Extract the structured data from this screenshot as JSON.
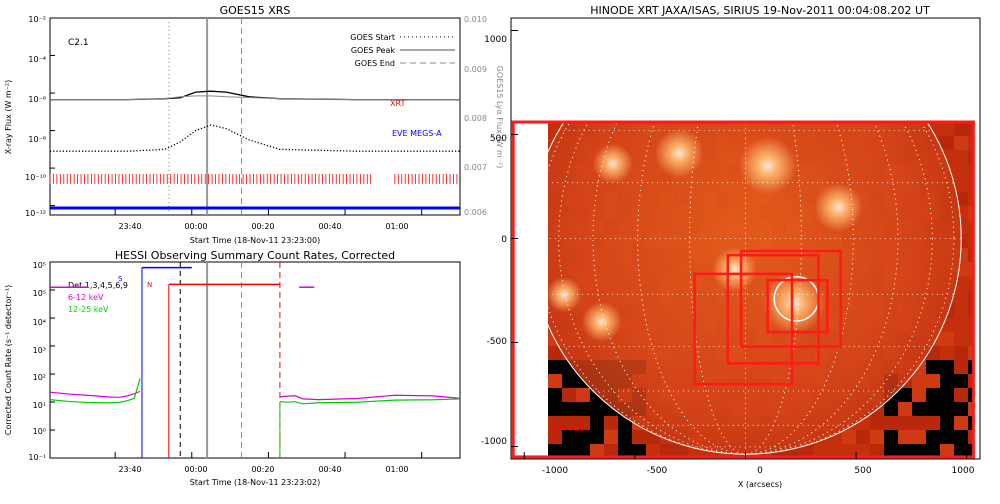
{
  "chart_data": [
    {
      "type": "line",
      "title": "GOES15 XRS",
      "xlabel": "Start Time (18-Nov-11 23:23:00)",
      "ylabel": "X-ray Flux (W m⁻²)",
      "y2label": "GOES15 Lyα Flux (W m⁻²)",
      "x_ticks": [
        "23:40",
        "00:00",
        "00:20",
        "00:40",
        "01:00"
      ],
      "y_ticks": [
        "10⁻²",
        "10⁻⁴",
        "10⁻⁶",
        "10⁻⁸",
        "10⁻¹⁰",
        "10⁻¹²"
      ],
      "y2_ticks": [
        "0.010",
        "0.009",
        "0.008",
        "0.007",
        "0.006"
      ],
      "flare_class": "C2.1",
      "legend": [
        {
          "label": "GOES Start",
          "style": "dotted"
        },
        {
          "label": "GOES Peak",
          "style": "solid"
        },
        {
          "label": "GOES End",
          "style": "dashed"
        }
      ],
      "annotations": {
        "xrt": "XRT",
        "eve": "EVE MEGS-A"
      },
      "x_range_minutes": [
        0,
        107
      ],
      "event_times_minutes": {
        "start": 31,
        "peak": 41,
        "end": 50
      },
      "series": [
        {
          "name": "GOES long channel",
          "color": "#000000",
          "log_y": [
            -6.35,
            -6.35,
            -6.3,
            -6.25,
            -5.95,
            -5.9,
            -5.95,
            -6.2,
            -6.3,
            -6.35,
            -6.35
          ],
          "x": [
            0,
            20,
            30,
            34,
            38,
            42,
            46,
            52,
            60,
            80,
            107
          ]
        },
        {
          "name": "GOES short channel",
          "color": "#000000",
          "log_y": [
            -9.1,
            -9.1,
            -9.0,
            -8.6,
            -8.0,
            -7.7,
            -7.9,
            -8.5,
            -9.0,
            -9.1,
            -9.1
          ],
          "x": [
            0,
            20,
            30,
            34,
            38,
            42,
            46,
            52,
            60,
            80,
            107
          ]
        },
        {
          "name": "Lyα",
          "color": "#888888",
          "log_y": [
            -6.35,
            -6.35,
            -6.3,
            -6.2,
            -6.15,
            -6.15,
            -6.2,
            -6.3,
            -6.35,
            -6.35
          ],
          "x": [
            0,
            20,
            30,
            34,
            38,
            42,
            46,
            60,
            80,
            107
          ]
        },
        {
          "name": "XRT coverage",
          "color": "#ff0000",
          "intervals_minutes": [
            [
              0,
              84
            ],
            [
              90,
              107
            ]
          ]
        },
        {
          "name": "EVE MEGS-A",
          "color": "#0000ff",
          "intervals_minutes": [
            [
              0,
              107
            ]
          ]
        }
      ]
    },
    {
      "type": "line",
      "title": "HESSI Observing Summary Count Rates, Corrected",
      "xlabel": "Start Time (18-Nov-11 23:23:02)",
      "ylabel": "Corrected Count Rate (s⁻¹ detector⁻¹)",
      "x_ticks": [
        "23:40",
        "00:00",
        "00:20",
        "00:40",
        "01:00"
      ],
      "y_ticks": [
        "10⁵",
        "10⁵",
        "10⁴",
        "10³",
        "10²",
        "10¹",
        "10⁰",
        "10⁻¹"
      ],
      "legend": [
        {
          "label": "Det 1,3,4,5,6,9",
          "color": "#000000"
        },
        {
          "label": "6-12 keV",
          "color": "#dd00dd"
        },
        {
          "label": "12-25 keV",
          "color": "#00cc00"
        }
      ],
      "flags": {
        "saa": "S",
        "night": "N"
      },
      "x_range_minutes": [
        0,
        107
      ],
      "series": [
        {
          "name": "6-12 keV",
          "color": "#dd00dd",
          "x": [
            0,
            5,
            10,
            15,
            18,
            20,
            22,
            23.5,
            60,
            62,
            64,
            66,
            70,
            80,
            90,
            100,
            107
          ],
          "log_y": [
            1.35,
            1.25,
            1.2,
            1.18,
            1.2,
            1.25,
            1.3,
            1.35,
            1.15,
            1.2,
            1.25,
            1.15,
            1.1,
            1.1,
            1.2,
            1.2,
            1.15
          ]
        },
        {
          "name": "12-25 keV",
          "color": "#00cc00",
          "x": [
            0,
            5,
            10,
            15,
            18,
            20,
            22,
            23.5,
            60,
            62,
            64,
            66,
            70,
            80,
            90,
            100,
            107
          ],
          "log_y": [
            1.05,
            0.98,
            0.98,
            1.0,
            1.02,
            1.05,
            1.1,
            1.8,
            1.0,
            1.02,
            1.05,
            0.95,
            0.95,
            0.95,
            1.05,
            1.1,
            1.15
          ]
        },
        {
          "name": "Attenuator/SAA",
          "color": "#0000ff",
          "x": [
            24,
            37
          ],
          "log_y": [
            5.8,
            5.8
          ]
        },
        {
          "name": "Night",
          "color": "#ff0000",
          "x": [
            31,
            60
          ],
          "log_y": [
            5.2,
            5.2
          ]
        }
      ],
      "event_times_minutes": {
        "start": 34,
        "peak": 41,
        "end": 50,
        "night_end": 60
      }
    },
    {
      "type": "heatmap",
      "title": "HINODE XRT JAXA/ISAS, SIRIUS 19-Nov-2011 00:04:08.202 UT",
      "xlabel": "X (arcsecs)",
      "x_ticks": [
        "-1000",
        "-500",
        "0",
        "500",
        "1000"
      ],
      "y_ticks": [
        "1000",
        "500",
        "0",
        "-500",
        "-1000"
      ],
      "xlim": [
        -1060,
        1060
      ],
      "ylim": [
        -1060,
        1060
      ],
      "solar_radius_arcsec": 975,
      "label": "XRT FOV",
      "flare_location_arcsec": [
        230,
        -290
      ],
      "fov_boxes_arcsec": [
        [
          -1050,
          -1050,
          1030,
          560
        ],
        [
          -230,
          -700,
          210,
          -170
        ],
        [
          -80,
          -600,
          330,
          -80
        ],
        [
          -20,
          -520,
          430,
          -60
        ],
        [
          100,
          -450,
          370,
          -200
        ]
      ],
      "bright_regions_arcsec": [
        [
          -820,
          -270,
          80
        ],
        [
          -650,
          -400,
          90
        ],
        [
          220,
          -310,
          140
        ],
        [
          -300,
          410,
          110
        ],
        [
          100,
          350,
          130
        ],
        [
          -600,
          360,
          90
        ],
        [
          420,
          150,
          110
        ],
        [
          -50,
          -150,
          100
        ]
      ]
    }
  ]
}
